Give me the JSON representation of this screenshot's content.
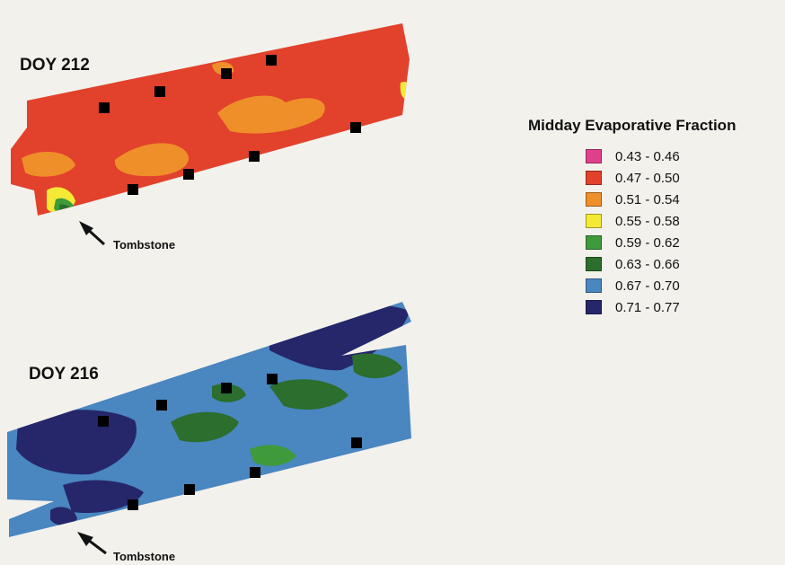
{
  "maps": [
    {
      "title": "DOY 212",
      "pointer_label": "Tombstone",
      "background_class": "0.47 - 0.50",
      "patches": [
        {
          "class": "0.51 - 0.54",
          "label": "orange patch east"
        },
        {
          "class": "0.51 - 0.54",
          "label": "orange patch central"
        },
        {
          "class": "0.51 - 0.54",
          "label": "orange patch west"
        },
        {
          "class": "0.55 - 0.58",
          "label": "yellow patch near Tombstone"
        },
        {
          "class": "0.59 - 0.62",
          "label": "green patch near Tombstone"
        },
        {
          "class": "0.63 - 0.66",
          "label": "dark green patch near Tombstone"
        },
        {
          "class": "0.55 - 0.58",
          "label": "yellow patch northeast edge"
        }
      ]
    },
    {
      "title": "DOY 216",
      "pointer_label": "Tombstone",
      "background_class": "0.67 - 0.70",
      "patches": [
        {
          "class": "0.71 - 0.77",
          "label": "dark blue northeast"
        },
        {
          "class": "0.71 - 0.77",
          "label": "dark blue west"
        },
        {
          "class": "0.71 - 0.77",
          "label": "dark blue southwest"
        },
        {
          "class": "0.63 - 0.66",
          "label": "green east"
        },
        {
          "class": "0.63 - 0.66",
          "label": "green central"
        },
        {
          "class": "0.59 - 0.62",
          "label": "light green south"
        },
        {
          "class": "0.71 - 0.77",
          "label": "dark blue Tombstone spur"
        }
      ]
    }
  ],
  "legend": {
    "title": "Midday Evaporative Fraction",
    "classes": [
      {
        "label": "0.43 - 0.46",
        "color": "#e0408a"
      },
      {
        "label": "0.47 - 0.50",
        "color": "#e2412c"
      },
      {
        "label": "0.51 - 0.54",
        "color": "#ee8f2a"
      },
      {
        "label": "0.55 - 0.58",
        "color": "#f4ea36"
      },
      {
        "label": "0.59 - 0.62",
        "color": "#3f9a3c"
      },
      {
        "label": "0.63 - 0.66",
        "color": "#2b6e2d"
      },
      {
        "label": "0.67 - 0.70",
        "color": "#4a86c0"
      },
      {
        "label": "0.71 - 0.77",
        "color": "#25276a"
      }
    ]
  },
  "marker_color": "#000000",
  "arrow_color": "#111111"
}
